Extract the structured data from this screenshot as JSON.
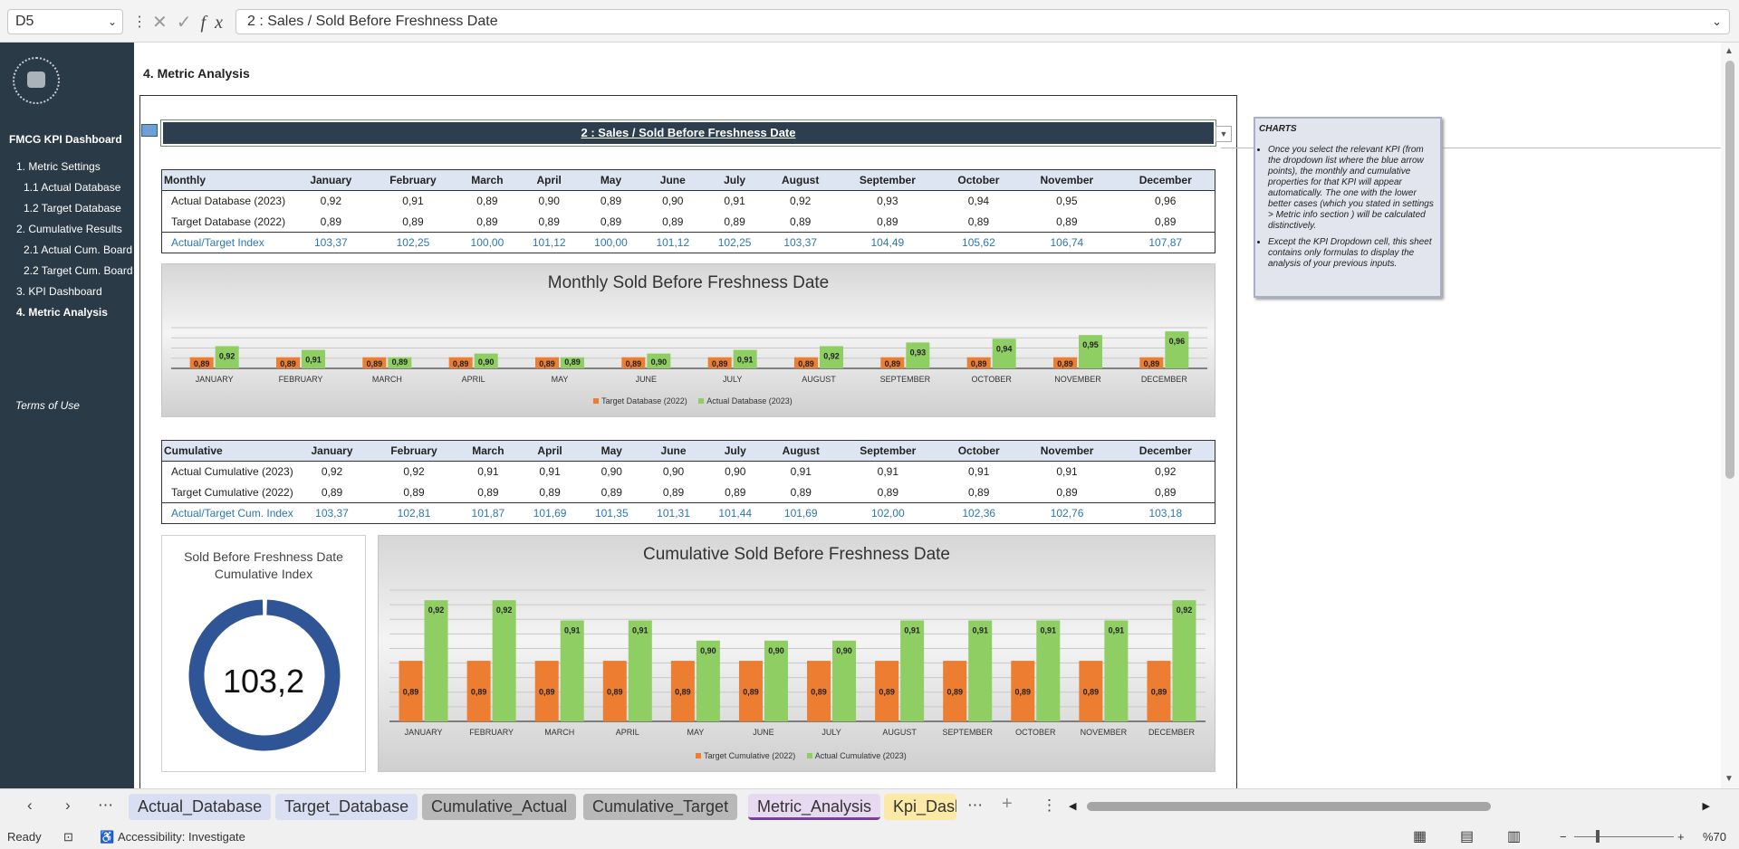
{
  "formula_bar": {
    "cell_ref": "D5",
    "content": "2 : Sales / Sold Before Freshness Date",
    "fx": "fx"
  },
  "sidebar": {
    "title": "FMCG KPI Dashboard",
    "items": [
      {
        "label": "1. Metric Settings",
        "bold": false
      },
      {
        "label": "1.1 Actual Database",
        "bold": false
      },
      {
        "label": "1.2 Target Database",
        "bold": false
      },
      {
        "label": "2. Cumulative Results",
        "bold": false
      },
      {
        "label": "2.1 Actual Cum. Board",
        "bold": false
      },
      {
        "label": "2.2 Target Cum. Board",
        "bold": false
      },
      {
        "label": "3. KPI Dashboard",
        "bold": false
      },
      {
        "label": "4. Metric Analysis",
        "bold": true
      }
    ],
    "terms": "Terms of Use"
  },
  "page_title": "4. Metric Analysis",
  "kpi_dropdown": "2 : Sales / Sold Before Freshness Date",
  "months": [
    "January",
    "February",
    "March",
    "April",
    "May",
    "June",
    "July",
    "August",
    "September",
    "October",
    "November",
    "December"
  ],
  "monthly_table": {
    "header": "Monthly",
    "rows": [
      {
        "label": "Actual Database (2023)",
        "values": [
          "0,92",
          "0,91",
          "0,89",
          "0,90",
          "0,89",
          "0,90",
          "0,91",
          "0,92",
          "0,93",
          "0,94",
          "0,95",
          "0,96"
        ]
      },
      {
        "label": "Target Database (2022)",
        "values": [
          "0,89",
          "0,89",
          "0,89",
          "0,89",
          "0,89",
          "0,89",
          "0,89",
          "0,89",
          "0,89",
          "0,89",
          "0,89",
          "0,89"
        ]
      },
      {
        "label": "Actual/Target Index",
        "values": [
          "103,37",
          "102,25",
          "100,00",
          "101,12",
          "100,00",
          "101,12",
          "102,25",
          "103,37",
          "104,49",
          "105,62",
          "106,74",
          "107,87"
        ]
      }
    ]
  },
  "cumulative_table": {
    "header": "Cumulative",
    "rows": [
      {
        "label": "Actual Cumulative (2023)",
        "values": [
          "0,92",
          "0,92",
          "0,91",
          "0,91",
          "0,90",
          "0,90",
          "0,90",
          "0,91",
          "0,91",
          "0,91",
          "0,91",
          "0,92"
        ]
      },
      {
        "label": "Target Cumulative (2022)",
        "values": [
          "0,89",
          "0,89",
          "0,89",
          "0,89",
          "0,89",
          "0,89",
          "0,89",
          "0,89",
          "0,89",
          "0,89",
          "0,89",
          "0,89"
        ]
      },
      {
        "label": "Actual/Target Cum. Index",
        "values": [
          "103,37",
          "102,81",
          "101,87",
          "101,69",
          "101,35",
          "101,31",
          "101,44",
          "101,69",
          "102,00",
          "102,36",
          "102,76",
          "103,18"
        ]
      }
    ]
  },
  "donut": {
    "title": "Sold Before Freshness Date Cumulative Index",
    "value": "103,2",
    "fraction": 0.99,
    "color": "#2f5597"
  },
  "note": {
    "title": "CHARTS",
    "bullets": [
      "Once you select the relevant KPI (from the dropdown list where the blue arrow points), the monthly and cumulative properties for that KPI will appear automatically. The one with the lower better cases (which you stated in settings > Metric info section ) will be calculated distinctively.",
      "Except the KPI Dropdown cell, this sheet contains only formulas to display the analysis of your previous inputs."
    ]
  },
  "chart_data": [
    {
      "type": "bar",
      "title": "Monthly Sold Before Freshness Date",
      "categories": [
        "JANUARY",
        "FEBRUARY",
        "MARCH",
        "APRIL",
        "MAY",
        "JUNE",
        "JULY",
        "AUGUST",
        "SEPTEMBER",
        "OCTOBER",
        "NOVEMBER",
        "DECEMBER"
      ],
      "series": [
        {
          "name": "Target Database (2022)",
          "color": "#ed7d31",
          "values": [
            0.89,
            0.89,
            0.89,
            0.89,
            0.89,
            0.89,
            0.89,
            0.89,
            0.89,
            0.89,
            0.89,
            0.89
          ],
          "labels": [
            "0,89",
            "0,89",
            "0,89",
            "0,89",
            "0,89",
            "0,89",
            "0,89",
            "0,89",
            "0,89",
            "0,89",
            "0,89",
            "0,89"
          ]
        },
        {
          "name": "Actual Database (2023)",
          "color": "#8fce63",
          "values": [
            0.92,
            0.91,
            0.89,
            0.9,
            0.89,
            0.9,
            0.91,
            0.92,
            0.93,
            0.94,
            0.95,
            0.96
          ],
          "labels": [
            "0,92",
            "0,91",
            "0,89",
            "0,90",
            "0,89",
            "0,90",
            "0,91",
            "0,92",
            "0,93",
            "0,94",
            "0,95",
            "0,96"
          ]
        }
      ],
      "ylim": [
        0.86,
        0.97
      ],
      "legend": "bottom",
      "grid": true
    },
    {
      "type": "bar",
      "title": "Cumulative Sold Before Freshness Date",
      "categories": [
        "JANUARY",
        "FEBRUARY",
        "MARCH",
        "APRIL",
        "MAY",
        "JUNE",
        "JULY",
        "AUGUST",
        "SEPTEMBER",
        "OCTOBER",
        "NOVEMBER",
        "DECEMBER"
      ],
      "series": [
        {
          "name": "Target Cumulative (2022)",
          "color": "#ed7d31",
          "values": [
            0.89,
            0.89,
            0.89,
            0.89,
            0.89,
            0.89,
            0.89,
            0.89,
            0.89,
            0.89,
            0.89,
            0.89
          ],
          "labels": [
            "0,89",
            "0,89",
            "0,89",
            "0,89",
            "0,89",
            "0,89",
            "0,89",
            "0,89",
            "0,89",
            "0,89",
            "0,89",
            "0,89"
          ]
        },
        {
          "name": "Actual Cumulative (2023)",
          "color": "#8fce63",
          "values": [
            0.92,
            0.92,
            0.91,
            0.91,
            0.9,
            0.9,
            0.9,
            0.91,
            0.91,
            0.91,
            0.91,
            0.92
          ],
          "labels": [
            "0,92",
            "0,92",
            "0,91",
            "0,91",
            "0,90",
            "0,90",
            "0,90",
            "0,91",
            "0,91",
            "0,91",
            "0,91",
            "0,92"
          ]
        }
      ],
      "ylim": [
        0.86,
        0.925
      ],
      "legend": "bottom",
      "grid": true
    }
  ],
  "tabs": [
    {
      "label": "Actual_Database",
      "color": "#d9def2",
      "active": false
    },
    {
      "label": "Target_Database",
      "color": "#d9def2",
      "active": false
    },
    {
      "label": "Cumulative_Actual",
      "color": "#b8b8b8",
      "active": false
    },
    {
      "label": "Cumulative_Target",
      "color": "#b8b8b8",
      "active": false
    },
    {
      "label": "Metric_Analysis",
      "color": "#e6d9f0",
      "active": true
    },
    {
      "label": "Kpi_Dash",
      "color": "#fce9a6",
      "active": false
    }
  ],
  "status": {
    "ready": "Ready",
    "accessibility": "Accessibility: Investigate",
    "zoom": "%70"
  }
}
